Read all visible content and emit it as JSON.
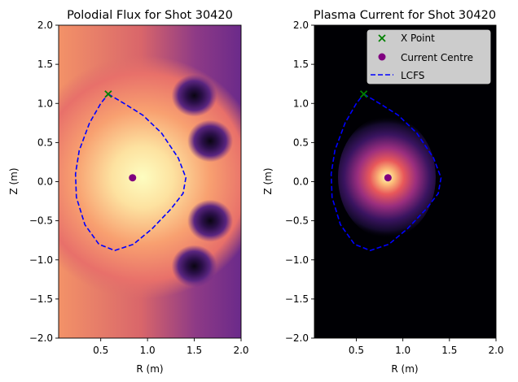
{
  "chart_data": [
    {
      "type": "contour",
      "title": "Polodial Flux for Shot 30420",
      "xlabel": "R (m)",
      "ylabel": "Z (m)",
      "xlim": [
        0.05,
        2.0
      ],
      "ylim": [
        -2.0,
        2.0
      ],
      "xticks": [
        "0.5",
        "1.0",
        "1.5",
        "2.0"
      ],
      "yticks": [
        "2.0",
        "1.5",
        "1.0",
        "0.5",
        "0.0",
        "−0.5",
        "−1.0",
        "−1.5",
        "−2.0"
      ],
      "colormap": "magma",
      "field_max_centre": {
        "R": 0.93,
        "Z": 0.05
      },
      "coils": [
        {
          "R": 1.5,
          "Z": 1.1
        },
        {
          "R": 1.67,
          "Z": 0.52
        },
        {
          "R": 1.67,
          "Z": -0.5
        },
        {
          "R": 1.5,
          "Z": -1.08
        }
      ],
      "series": [
        {
          "name": "X Point",
          "type": "scatter",
          "marker": "x",
          "color": "#008000",
          "points": [
            {
              "x": 0.58,
              "y": 1.12
            }
          ]
        },
        {
          "name": "Current Centre",
          "type": "scatter",
          "marker": "o",
          "color": "#800080",
          "points": [
            {
              "x": 0.84,
              "y": 0.05
            }
          ]
        },
        {
          "name": "LCFS",
          "type": "line",
          "style": "dashed",
          "color": "#0000ff",
          "points": [
            {
              "x": 0.58,
              "y": 1.12
            },
            {
              "x": 0.75,
              "y": 1.0
            },
            {
              "x": 0.95,
              "y": 0.85
            },
            {
              "x": 1.15,
              "y": 0.62
            },
            {
              "x": 1.33,
              "y": 0.3
            },
            {
              "x": 1.41,
              "y": 0.05
            },
            {
              "x": 1.38,
              "y": -0.15
            },
            {
              "x": 1.25,
              "y": -0.35
            },
            {
              "x": 1.05,
              "y": -0.6
            },
            {
              "x": 0.85,
              "y": -0.8
            },
            {
              "x": 0.65,
              "y": -0.88
            },
            {
              "x": 0.48,
              "y": -0.8
            },
            {
              "x": 0.33,
              "y": -0.55
            },
            {
              "x": 0.24,
              "y": -0.2
            },
            {
              "x": 0.23,
              "y": 0.1
            },
            {
              "x": 0.27,
              "y": 0.4
            },
            {
              "x": 0.38,
              "y": 0.75
            },
            {
              "x": 0.5,
              "y": 1.0
            },
            {
              "x": 0.58,
              "y": 1.12
            }
          ]
        }
      ]
    },
    {
      "type": "contour",
      "title": "Plasma Current for Shot 30420",
      "xlabel": "R (m)",
      "ylabel": "Z (m)",
      "xlim": [
        0.05,
        2.0
      ],
      "ylim": [
        -2.0,
        2.0
      ],
      "xticks": [
        "0.5",
        "1.0",
        "1.5",
        "2.0"
      ],
      "yticks": [
        "2.0",
        "1.5",
        "1.0",
        "0.5",
        "0.0",
        "−0.5",
        "−1.0",
        "−1.5",
        "−2.0"
      ],
      "colormap": "magma",
      "field_max_centre": {
        "R": 0.84,
        "Z": 0.05
      },
      "legend": {
        "position": "upper right",
        "entries": [
          "X Point",
          "Current Centre",
          "LCFS"
        ]
      },
      "series": [
        {
          "name": "X Point",
          "type": "scatter",
          "marker": "x",
          "color": "#008000",
          "points": [
            {
              "x": 0.58,
              "y": 1.12
            }
          ]
        },
        {
          "name": "Current Centre",
          "type": "scatter",
          "marker": "o",
          "color": "#800080",
          "points": [
            {
              "x": 0.84,
              "y": 0.05
            }
          ]
        },
        {
          "name": "LCFS",
          "type": "line",
          "style": "dashed",
          "color": "#0000ff",
          "points": [
            {
              "x": 0.58,
              "y": 1.12
            },
            {
              "x": 0.75,
              "y": 1.0
            },
            {
              "x": 0.95,
              "y": 0.85
            },
            {
              "x": 1.15,
              "y": 0.62
            },
            {
              "x": 1.33,
              "y": 0.3
            },
            {
              "x": 1.41,
              "y": 0.05
            },
            {
              "x": 1.38,
              "y": -0.15
            },
            {
              "x": 1.25,
              "y": -0.35
            },
            {
              "x": 1.05,
              "y": -0.6
            },
            {
              "x": 0.85,
              "y": -0.8
            },
            {
              "x": 0.65,
              "y": -0.88
            },
            {
              "x": 0.48,
              "y": -0.8
            },
            {
              "x": 0.33,
              "y": -0.55
            },
            {
              "x": 0.24,
              "y": -0.2
            },
            {
              "x": 0.23,
              "y": 0.1
            },
            {
              "x": 0.27,
              "y": 0.4
            },
            {
              "x": 0.38,
              "y": 0.75
            },
            {
              "x": 0.5,
              "y": 1.0
            },
            {
              "x": 0.58,
              "y": 1.12
            }
          ]
        }
      ]
    }
  ]
}
